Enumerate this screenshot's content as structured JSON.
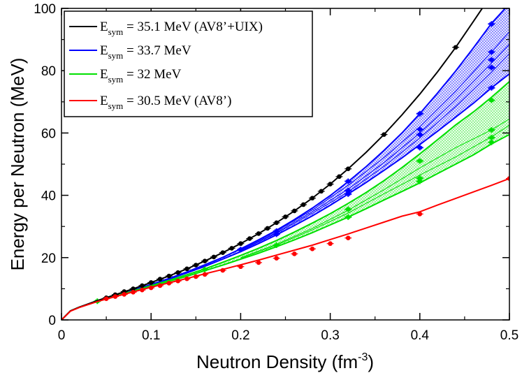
{
  "chart_data": {
    "type": "line",
    "title": "",
    "xlabel": "Neutron Density (fm",
    "xlabel_sup": "-3",
    "xlabel_suffix": ")",
    "ylabel": "Energy per Neutron (MeV)",
    "xlim": [
      0,
      0.5
    ],
    "ylim": [
      0,
      100
    ],
    "x_ticks": [
      "0",
      "0.1",
      "0.2",
      "0.3",
      "0.4",
      "0.5"
    ],
    "y_ticks": [
      "0",
      "20",
      "40",
      "60",
      "80",
      "100"
    ],
    "legend_position": "top-left",
    "series": [
      {
        "name": "AV8'+UIX",
        "legend_main": "E",
        "legend_sub": "sym",
        "legend_rest": " = 35.1 MeV (AV8’+UIX)",
        "color": "#000000",
        "curve": [
          [
            0.0,
            0.0
          ],
          [
            0.01,
            2.9
          ],
          [
            0.02,
            4.1
          ],
          [
            0.04,
            6.2
          ],
          [
            0.06,
            8.1
          ],
          [
            0.08,
            10.0
          ],
          [
            0.1,
            12.0
          ],
          [
            0.12,
            14.1
          ],
          [
            0.14,
            16.4
          ],
          [
            0.16,
            18.9
          ],
          [
            0.18,
            21.6
          ],
          [
            0.2,
            24.5
          ],
          [
            0.22,
            27.7
          ],
          [
            0.24,
            31.2
          ],
          [
            0.26,
            35.0
          ],
          [
            0.28,
            39.1
          ],
          [
            0.3,
            43.6
          ],
          [
            0.32,
            48.5
          ],
          [
            0.34,
            53.8
          ],
          [
            0.36,
            59.5
          ],
          [
            0.38,
            65.8
          ],
          [
            0.4,
            72.5
          ],
          [
            0.42,
            79.7
          ],
          [
            0.44,
            87.5
          ],
          [
            0.46,
            95.9
          ],
          [
            0.472,
            101.0
          ]
        ],
        "points": [
          [
            0.05,
            7.1
          ],
          [
            0.06,
            8.1
          ],
          [
            0.07,
            9.1
          ],
          [
            0.08,
            10.0
          ],
          [
            0.09,
            11.0
          ],
          [
            0.1,
            12.0
          ],
          [
            0.11,
            13.1
          ],
          [
            0.12,
            14.1
          ],
          [
            0.13,
            15.2
          ],
          [
            0.14,
            16.4
          ],
          [
            0.15,
            17.6
          ],
          [
            0.16,
            18.9
          ],
          [
            0.17,
            20.2
          ],
          [
            0.18,
            21.6
          ],
          [
            0.19,
            23.0
          ],
          [
            0.2,
            24.5
          ],
          [
            0.21,
            26.1
          ],
          [
            0.22,
            27.7
          ],
          [
            0.23,
            29.4
          ],
          [
            0.24,
            31.2
          ],
          [
            0.25,
            33.1
          ],
          [
            0.26,
            35.0
          ],
          [
            0.27,
            37.0
          ],
          [
            0.28,
            39.1
          ],
          [
            0.29,
            41.3
          ],
          [
            0.3,
            43.6
          ],
          [
            0.31,
            46.0
          ],
          [
            0.32,
            48.5
          ],
          [
            0.36,
            59.5
          ],
          [
            0.44,
            87.5
          ]
        ]
      },
      {
        "name": "Esym 33.7",
        "legend_main": "E",
        "legend_sub": "sym",
        "legend_rest": " = 33.7 MeV",
        "color": "#0000ff",
        "upper": [
          [
            0.0,
            0.0
          ],
          [
            0.01,
            2.9
          ],
          [
            0.02,
            4.1
          ],
          [
            0.04,
            6.0
          ],
          [
            0.06,
            7.8
          ],
          [
            0.08,
            9.6
          ],
          [
            0.1,
            11.4
          ],
          [
            0.12,
            13.3
          ],
          [
            0.14,
            15.4
          ],
          [
            0.16,
            17.7
          ],
          [
            0.18,
            20.1
          ],
          [
            0.2,
            22.8
          ],
          [
            0.22,
            25.7
          ],
          [
            0.24,
            28.8
          ],
          [
            0.26,
            32.2
          ],
          [
            0.28,
            35.9
          ],
          [
            0.3,
            39.9
          ],
          [
            0.32,
            44.4
          ],
          [
            0.34,
            49.2
          ],
          [
            0.36,
            54.4
          ],
          [
            0.38,
            60.0
          ],
          [
            0.4,
            66.2
          ],
          [
            0.42,
            72.9
          ],
          [
            0.44,
            79.9
          ],
          [
            0.46,
            87.4
          ],
          [
            0.48,
            95.2
          ],
          [
            0.5,
            101.5
          ]
        ],
        "lower": [
          [
            0.0,
            0.0
          ],
          [
            0.01,
            2.9
          ],
          [
            0.02,
            4.1
          ],
          [
            0.04,
            6.0
          ],
          [
            0.06,
            7.8
          ],
          [
            0.08,
            9.6
          ],
          [
            0.1,
            11.3
          ],
          [
            0.12,
            13.1
          ],
          [
            0.14,
            15.1
          ],
          [
            0.16,
            17.2
          ],
          [
            0.18,
            19.5
          ],
          [
            0.2,
            21.9
          ],
          [
            0.22,
            24.5
          ],
          [
            0.24,
            27.3
          ],
          [
            0.26,
            30.3
          ],
          [
            0.28,
            33.4
          ],
          [
            0.3,
            36.8
          ],
          [
            0.32,
            40.4
          ],
          [
            0.34,
            44.1
          ],
          [
            0.36,
            48.0
          ],
          [
            0.38,
            52.0
          ],
          [
            0.4,
            56.3
          ],
          [
            0.42,
            60.6
          ],
          [
            0.44,
            65.1
          ],
          [
            0.46,
            69.6
          ],
          [
            0.48,
            74.5
          ],
          [
            0.5,
            79.0
          ]
        ],
        "inner": [
          [
            [
              0.2,
              22.6
            ],
            [
              0.24,
              28.5
            ],
            [
              0.28,
              35.3
            ],
            [
              0.32,
              43.2
            ],
            [
              0.36,
              52.1
            ],
            [
              0.4,
              62.0
            ],
            [
              0.44,
              73.4
            ],
            [
              0.48,
              86.0
            ],
            [
              0.5,
              92.5
            ]
          ],
          [
            [
              0.2,
              22.4
            ],
            [
              0.24,
              28.1
            ],
            [
              0.28,
              34.7
            ],
            [
              0.32,
              42.0
            ],
            [
              0.36,
              50.5
            ],
            [
              0.4,
              60.0
            ],
            [
              0.44,
              70.7
            ],
            [
              0.48,
              82.5
            ],
            [
              0.5,
              88.5
            ]
          ],
          [
            [
              0.2,
              22.2
            ],
            [
              0.24,
              27.8
            ],
            [
              0.28,
              34.2
            ],
            [
              0.32,
              41.1
            ],
            [
              0.36,
              49.3
            ],
            [
              0.4,
              58.4
            ],
            [
              0.44,
              68.5
            ],
            [
              0.48,
              79.5
            ],
            [
              0.5,
              85.5
            ]
          ]
        ],
        "markers": [
          [
            0.2,
            22.6
          ],
          [
            0.24,
            28.5
          ],
          [
            0.24,
            27.5
          ],
          [
            0.32,
            44.5
          ],
          [
            0.32,
            41.5
          ],
          [
            0.32,
            40.4
          ],
          [
            0.4,
            66.2
          ],
          [
            0.4,
            61.2
          ],
          [
            0.4,
            59.5
          ],
          [
            0.4,
            55.3
          ],
          [
            0.48,
            95.0
          ],
          [
            0.48,
            86.0
          ],
          [
            0.48,
            83.5
          ],
          [
            0.48,
            81.0
          ],
          [
            0.48,
            74.5
          ]
        ]
      },
      {
        "name": "Esym 32",
        "legend_main": "E",
        "legend_sub": "sym",
        "legend_rest": " = 32 MeV",
        "color": "#00e000",
        "upper": [
          [
            0.0,
            0.0
          ],
          [
            0.01,
            2.9
          ],
          [
            0.02,
            4.1
          ],
          [
            0.04,
            6.0
          ],
          [
            0.06,
            7.7
          ],
          [
            0.08,
            9.3
          ],
          [
            0.1,
            11.0
          ],
          [
            0.12,
            12.7
          ],
          [
            0.14,
            14.5
          ],
          [
            0.16,
            16.4
          ],
          [
            0.18,
            18.5
          ],
          [
            0.2,
            20.7
          ],
          [
            0.22,
            23.0
          ],
          [
            0.24,
            25.5
          ],
          [
            0.26,
            28.2
          ],
          [
            0.28,
            31.1
          ],
          [
            0.3,
            34.1
          ],
          [
            0.32,
            37.4
          ],
          [
            0.34,
            40.9
          ],
          [
            0.36,
            44.7
          ],
          [
            0.38,
            48.9
          ],
          [
            0.4,
            53.3
          ],
          [
            0.42,
            57.9
          ],
          [
            0.44,
            62.6
          ],
          [
            0.46,
            66.8
          ],
          [
            0.48,
            71.5
          ],
          [
            0.5,
            76.5
          ]
        ],
        "lower": [
          [
            0.0,
            0.0
          ],
          [
            0.01,
            2.9
          ],
          [
            0.02,
            4.1
          ],
          [
            0.04,
            6.0
          ],
          [
            0.06,
            7.6
          ],
          [
            0.08,
            9.2
          ],
          [
            0.1,
            10.8
          ],
          [
            0.12,
            12.4
          ],
          [
            0.14,
            14.0
          ],
          [
            0.16,
            15.8
          ],
          [
            0.18,
            17.6
          ],
          [
            0.2,
            19.5
          ],
          [
            0.22,
            21.4
          ],
          [
            0.24,
            23.5
          ],
          [
            0.26,
            25.7
          ],
          [
            0.28,
            28.0
          ],
          [
            0.3,
            30.5
          ],
          [
            0.32,
            33.0
          ],
          [
            0.34,
            35.7
          ],
          [
            0.36,
            38.5
          ],
          [
            0.38,
            41.2
          ],
          [
            0.4,
            44.0
          ],
          [
            0.42,
            47.0
          ],
          [
            0.44,
            50.0
          ],
          [
            0.46,
            53.0
          ],
          [
            0.48,
            56.5
          ],
          [
            0.5,
            59.5
          ]
        ],
        "inner": [
          [
            [
              0.2,
              20.0
            ],
            [
              0.24,
              24.3
            ],
            [
              0.28,
              29.4
            ],
            [
              0.32,
              35.2
            ],
            [
              0.36,
              41.8
            ],
            [
              0.4,
              48.8
            ],
            [
              0.44,
              55.3
            ],
            [
              0.48,
              61.0
            ],
            [
              0.5,
              64.5
            ]
          ],
          [
            [
              0.2,
              19.8
            ],
            [
              0.24,
              24.0
            ],
            [
              0.28,
              28.9
            ],
            [
              0.32,
              34.3
            ],
            [
              0.36,
              40.5
            ],
            [
              0.4,
              46.5
            ],
            [
              0.44,
              52.3
            ],
            [
              0.48,
              58.8
            ],
            [
              0.5,
              62.5
            ]
          ]
        ],
        "markers": [
          [
            0.04,
            6.0
          ],
          [
            0.16,
            16.2
          ],
          [
            0.24,
            24.0
          ],
          [
            0.32,
            35.5
          ],
          [
            0.32,
            33.0
          ],
          [
            0.4,
            51.0
          ],
          [
            0.4,
            45.5
          ],
          [
            0.4,
            44.5
          ],
          [
            0.48,
            70.5
          ],
          [
            0.48,
            61.0
          ],
          [
            0.48,
            58.5
          ],
          [
            0.48,
            57.0
          ]
        ]
      },
      {
        "name": "AV8'",
        "legend_main": "E",
        "legend_sub": "sym",
        "legend_rest": " = 30.5 MeV (AV8’)",
        "color": "#ff0000",
        "curve": [
          [
            0.0,
            0.0
          ],
          [
            0.01,
            2.8
          ],
          [
            0.02,
            4.0
          ],
          [
            0.04,
            5.9
          ],
          [
            0.06,
            7.5
          ],
          [
            0.08,
            9.0
          ],
          [
            0.1,
            10.5
          ],
          [
            0.12,
            11.9
          ],
          [
            0.14,
            13.3
          ],
          [
            0.16,
            14.8
          ],
          [
            0.18,
            16.2
          ],
          [
            0.2,
            17.7
          ],
          [
            0.22,
            19.2
          ],
          [
            0.24,
            20.8
          ],
          [
            0.26,
            22.4
          ],
          [
            0.28,
            24.0
          ],
          [
            0.3,
            25.8
          ],
          [
            0.32,
            27.6
          ],
          [
            0.34,
            29.5
          ],
          [
            0.36,
            31.4
          ],
          [
            0.38,
            33.3
          ],
          [
            0.4,
            34.7
          ],
          [
            0.42,
            36.9
          ],
          [
            0.44,
            39.0
          ],
          [
            0.46,
            41.1
          ],
          [
            0.48,
            43.2
          ],
          [
            0.5,
            45.4
          ]
        ],
        "points": [
          [
            0.05,
            6.8
          ],
          [
            0.06,
            7.5
          ],
          [
            0.07,
            8.2
          ],
          [
            0.08,
            8.9
          ],
          [
            0.09,
            9.6
          ],
          [
            0.1,
            10.3
          ],
          [
            0.11,
            11.0
          ],
          [
            0.12,
            11.8
          ],
          [
            0.13,
            12.5
          ],
          [
            0.14,
            13.2
          ],
          [
            0.15,
            13.9
          ],
          [
            0.16,
            14.6
          ],
          [
            0.18,
            15.9
          ],
          [
            0.2,
            17.1
          ],
          [
            0.22,
            18.4
          ],
          [
            0.24,
            19.8
          ],
          [
            0.26,
            21.2
          ],
          [
            0.28,
            22.8
          ],
          [
            0.3,
            24.5
          ],
          [
            0.32,
            26.3
          ],
          [
            0.4,
            34.0
          ],
          [
            0.5,
            45.4
          ]
        ]
      }
    ]
  }
}
